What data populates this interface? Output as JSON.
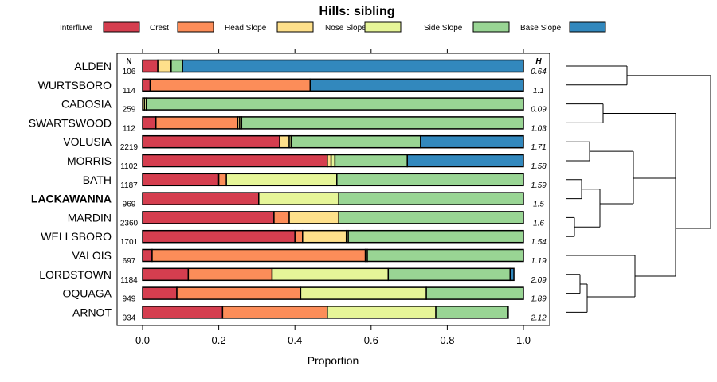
{
  "chart_data": {
    "type": "bar",
    "orientation": "horizontal",
    "stacked": true,
    "title": "Hills: sibling",
    "xlabel": "Proportion",
    "xlim": [
      0,
      1
    ],
    "xticks": [
      "0.0",
      "0.2",
      "0.4",
      "0.6",
      "0.8",
      "1.0"
    ],
    "tick_values": [
      0,
      0.2,
      0.4,
      0.6,
      0.8,
      1.0
    ],
    "n_header": "N",
    "h_header": "H",
    "categories": [
      "ALDEN",
      "WURTSBORO",
      "CADOSIA",
      "SWARTSWOOD",
      "VOLUSIA",
      "MORRIS",
      "BATH",
      "LACKAWANNA",
      "MARDIN",
      "WELLSBORO",
      "VALOIS",
      "LORDSTOWN",
      "OQUAGA",
      "ARNOT"
    ],
    "highlight": "LACKAWANNA",
    "n": [
      "106",
      "114",
      "259",
      "112",
      "2219",
      "1102",
      "1187",
      "969",
      "2360",
      "1701",
      "697",
      "1184",
      "949",
      "934"
    ],
    "h": [
      "0.64",
      "1.1",
      "0.09",
      "1.03",
      "1.71",
      "1.58",
      "1.59",
      "1.5",
      "1.6",
      "1.54",
      "1.19",
      "2.09",
      "1.89",
      "2.12"
    ],
    "series": [
      {
        "name": "Interfluve",
        "color": "#D53E4F",
        "values": [
          0.04,
          0.02,
          0.0,
          0.035,
          0.36,
          0.485,
          0.2,
          0.305,
          0.345,
          0.4,
          0.025,
          0.12,
          0.09,
          0.21
        ]
      },
      {
        "name": "Crest",
        "color": "#FC8D59",
        "values": [
          0.0,
          0.42,
          0.0,
          0.215,
          0.0,
          0.0,
          0.02,
          0.0,
          0.04,
          0.02,
          0.56,
          0.22,
          0.325,
          0.275
        ]
      },
      {
        "name": "Head Slope",
        "color": "#FEE08B",
        "values": [
          0.035,
          0.0,
          0.005,
          0.005,
          0.025,
          0.01,
          0.0,
          0.0,
          0.13,
          0.115,
          0.0,
          0.0,
          0.0,
          0.0
        ]
      },
      {
        "name": "Nose Slope",
        "color": "#E6F598",
        "values": [
          0.0,
          0.0,
          0.005,
          0.005,
          0.005,
          0.01,
          0.29,
          0.21,
          0.0,
          0.005,
          0.005,
          0.305,
          0.33,
          0.285
        ]
      },
      {
        "name": "Side Slope",
        "color": "#99D594",
        "values": [
          0.03,
          0.0,
          0.99,
          0.74,
          0.34,
          0.19,
          0.49,
          0.485,
          0.485,
          0.46,
          0.41,
          0.32,
          0.255,
          0.19
        ]
      },
      {
        "name": "Base Slope",
        "color": "#3288BD",
        "values": [
          0.895,
          0.56,
          0.0,
          0.0,
          0.27,
          0.305,
          0.0,
          0.0,
          0.0,
          0.0,
          0.0,
          0.01,
          0.0,
          0.0
        ]
      }
    ]
  }
}
